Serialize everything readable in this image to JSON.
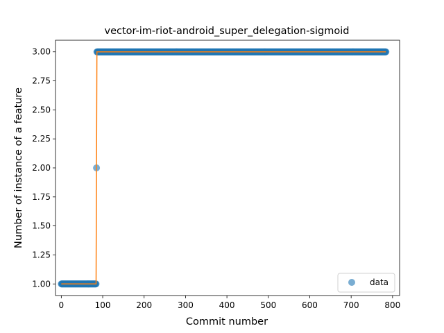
{
  "chart_data": {
    "type": "scatter",
    "title": "vector-im-riot-android_super_delegation-sigmoid",
    "xlabel": "Commit number",
    "ylabel": "Number of instance of a feature",
    "xlim": [
      -14,
      817
    ],
    "ylim": [
      0.9,
      3.1
    ],
    "xticks": [
      0,
      100,
      200,
      300,
      400,
      500,
      600,
      700,
      800
    ],
    "yticks": [
      1.0,
      1.25,
      1.5,
      1.75,
      2.0,
      2.25,
      2.5,
      2.75,
      3.0
    ],
    "ytick_labels": [
      "1.00",
      "1.25",
      "1.50",
      "1.75",
      "2.00",
      "2.25",
      "2.50",
      "2.75",
      "3.00"
    ],
    "legend": {
      "position": "lower-right",
      "entries": [
        "data"
      ]
    },
    "series": [
      {
        "name": "data",
        "kind": "scatter",
        "color": "#1f77b4",
        "segments": [
          {
            "x_start": 0,
            "x_end": 84,
            "y": 1.0
          },
          {
            "x_start": 85,
            "x_end": 85,
            "y": 2.0
          },
          {
            "x_start": 86,
            "x_end": 784,
            "y": 3.0
          }
        ]
      },
      {
        "kind": "line",
        "color": "#ff7f0e",
        "x": [
          0,
          84,
          85,
          86,
          784
        ],
        "y": [
          1.0,
          1.0,
          2.0,
          3.0,
          3.0
        ]
      }
    ],
    "grid": false
  }
}
